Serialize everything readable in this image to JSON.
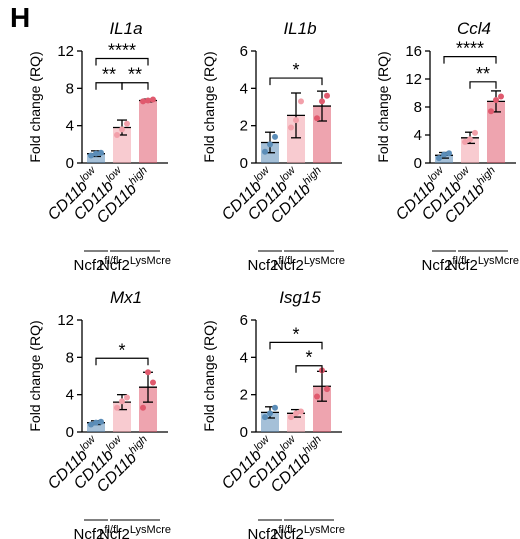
{
  "panel_label": "H",
  "chart_data": [
    {
      "type": "bar",
      "title": "IL1a",
      "ylabel": "Fold change (RQ)",
      "ylim": [
        0,
        12
      ],
      "yticks": [
        0,
        4,
        8,
        12
      ],
      "categories": [
        "CD11b",
        "CD11b",
        "CD11b"
      ],
      "category_superscripts": [
        "low",
        "low",
        "high"
      ],
      "values": [
        1.0,
        3.8,
        6.7
      ],
      "errors": [
        0.3,
        0.8,
        0.15
      ],
      "points": [
        [
          0.8,
          1.1,
          1.0
        ],
        [
          3.0,
          4.2,
          3.6
        ],
        [
          6.6,
          6.8,
          6.7
        ]
      ],
      "colors": [
        "#5b8db8",
        "#f2a0aa",
        "#e05a6e"
      ],
      "genotype_groups": [
        {
          "label": "Ncf2",
          "sup": "fl/fl",
          "span": [
            0,
            0
          ]
        },
        {
          "label": "Ncf2",
          "sup": "LysMcre",
          "span": [
            1,
            2
          ]
        }
      ],
      "significance": [
        {
          "from": 0,
          "to": 1,
          "label": "**",
          "y": 8.6
        },
        {
          "from": 1,
          "to": 2,
          "label": "**",
          "y": 8.6
        },
        {
          "from": 0,
          "to": 2,
          "label": "****",
          "y": 11.2
        }
      ]
    },
    {
      "type": "bar",
      "title": "IL1b",
      "ylabel": "Fold change (RQ)",
      "ylim": [
        0,
        6
      ],
      "yticks": [
        0,
        2,
        4,
        6
      ],
      "categories": [
        "CD11b",
        "CD11b",
        "CD11b"
      ],
      "category_superscripts": [
        "low",
        "low",
        "high"
      ],
      "values": [
        1.1,
        2.55,
        3.05
      ],
      "errors": [
        0.55,
        1.2,
        0.8
      ],
      "points": [
        [
          0.6,
          1.4,
          1.0
        ],
        [
          1.9,
          3.3,
          2.3
        ],
        [
          2.4,
          3.6,
          3.3
        ]
      ],
      "colors": [
        "#5b8db8",
        "#f2a0aa",
        "#e05a6e"
      ],
      "genotype_groups": [
        {
          "label": "Ncf2",
          "sup": "fl/fl",
          "span": [
            0,
            0
          ]
        },
        {
          "label": "Ncf2",
          "sup": "LysMcre",
          "span": [
            1,
            2
          ]
        }
      ],
      "significance": [
        {
          "from": 0,
          "to": 2,
          "label": "*",
          "y": 4.55
        }
      ]
    },
    {
      "type": "bar",
      "title": "Ccl4",
      "ylabel": "Fold change (RQ)",
      "ylim": [
        0,
        16
      ],
      "yticks": [
        0,
        4,
        8,
        12,
        16
      ],
      "categories": [
        "CD11b",
        "CD11b",
        "CD11b"
      ],
      "category_superscripts": [
        "low",
        "low",
        "high"
      ],
      "values": [
        1.1,
        3.6,
        8.8
      ],
      "errors": [
        0.4,
        0.8,
        1.5
      ],
      "points": [
        [
          0.7,
          1.4,
          1.2
        ],
        [
          3.0,
          4.3,
          3.4
        ],
        [
          7.4,
          9.5,
          9.0
        ]
      ],
      "colors": [
        "#5b8db8",
        "#f2a0aa",
        "#e05a6e"
      ],
      "genotype_groups": [
        {
          "label": "Ncf2",
          "sup": "fl/fl",
          "span": [
            0,
            0
          ]
        },
        {
          "label": "Ncf2",
          "sup": "LysMcre",
          "span": [
            1,
            2
          ]
        }
      ],
      "significance": [
        {
          "from": 1,
          "to": 2,
          "label": "**",
          "y": 11.6
        },
        {
          "from": 0,
          "to": 2,
          "label": "****",
          "y": 15.2
        }
      ]
    },
    {
      "type": "bar",
      "title": "Mx1",
      "ylabel": "Fold change (RQ)",
      "ylim": [
        0,
        12
      ],
      "yticks": [
        0,
        4,
        8,
        12
      ],
      "categories": [
        "CD11b",
        "CD11b",
        "CD11b"
      ],
      "category_superscripts": [
        "low",
        "low",
        "high"
      ],
      "values": [
        1.0,
        3.2,
        4.8
      ],
      "errors": [
        0.2,
        0.8,
        1.6
      ],
      "points": [
        [
          0.8,
          1.1,
          1.0
        ],
        [
          2.6,
          3.7,
          3.3
        ],
        [
          2.6,
          5.3,
          6.4
        ]
      ],
      "colors": [
        "#5b8db8",
        "#f2a0aa",
        "#e05a6e"
      ],
      "genotype_groups": [
        {
          "label": "Ncf2",
          "sup": "fl/fl",
          "span": [
            0,
            0
          ]
        },
        {
          "label": "Ncf2",
          "sup": "LysMcre",
          "span": [
            1,
            2
          ]
        }
      ],
      "significance": [
        {
          "from": 0,
          "to": 2,
          "label": "*",
          "y": 7.9
        }
      ]
    },
    {
      "type": "bar",
      "title": "Isg15",
      "ylabel": "Fold change (RQ)",
      "ylim": [
        0,
        6
      ],
      "yticks": [
        0,
        2,
        4,
        6
      ],
      "categories": [
        "CD11b",
        "CD11b",
        "CD11b"
      ],
      "category_superscripts": [
        "low",
        "low",
        "high"
      ],
      "values": [
        1.05,
        1.0,
        2.45
      ],
      "errors": [
        0.3,
        0.2,
        0.8
      ],
      "points": [
        [
          0.8,
          1.3,
          1.0
        ],
        [
          0.8,
          1.1,
          1.0
        ],
        [
          1.9,
          2.3,
          3.3
        ]
      ],
      "colors": [
        "#5b8db8",
        "#f2a0aa",
        "#e05a6e"
      ],
      "genotype_groups": [
        {
          "label": "Ncf2",
          "sup": "fl/fl",
          "span": [
            0,
            0
          ]
        },
        {
          "label": "Ncf2",
          "sup": "LysMcre",
          "span": [
            1,
            2
          ]
        }
      ],
      "significance": [
        {
          "from": 1,
          "to": 2,
          "label": "*",
          "y": 3.55
        },
        {
          "from": 0,
          "to": 2,
          "label": "*",
          "y": 4.8
        }
      ]
    }
  ]
}
